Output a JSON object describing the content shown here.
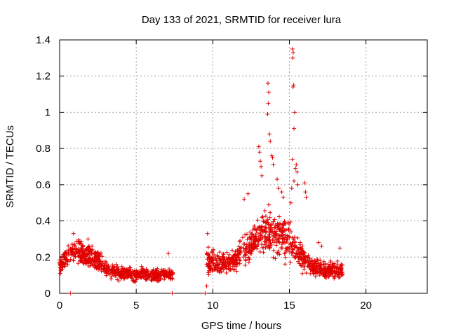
{
  "chart_data": {
    "type": "scatter",
    "title": "Day 133 of 2021, SRMTID for receiver lura",
    "xlabel": "GPS time / hours",
    "ylabel": "SRMTID / TECUs",
    "xlim": [
      0,
      24
    ],
    "ylim": [
      0,
      1.4
    ],
    "xticks": [
      0,
      5,
      10,
      15,
      20
    ],
    "yticks": [
      0,
      0.2,
      0.4,
      0.6,
      0.8,
      1,
      1.2,
      1.4
    ],
    "ytick_labels": [
      "0",
      "0.2",
      "0.4",
      "0.6",
      "0.8",
      "1",
      "1.2",
      "1.4"
    ],
    "grid": true,
    "marker": "+",
    "color": "#e00000",
    "series": [
      {
        "name": "SRMTID",
        "profile": [
          {
            "t": 0.0,
            "y": 0.15
          },
          {
            "t": 0.5,
            "y": 0.2
          },
          {
            "t": 1.0,
            "y": 0.23
          },
          {
            "t": 1.5,
            "y": 0.22
          },
          {
            "t": 2.0,
            "y": 0.2
          },
          {
            "t": 2.5,
            "y": 0.18
          },
          {
            "t": 3.0,
            "y": 0.14
          },
          {
            "t": 3.5,
            "y": 0.12
          },
          {
            "t": 4.0,
            "y": 0.11
          },
          {
            "t": 4.5,
            "y": 0.11
          },
          {
            "t": 5.0,
            "y": 0.1
          },
          {
            "t": 5.5,
            "y": 0.11
          },
          {
            "t": 6.0,
            "y": 0.1
          },
          {
            "t": 6.5,
            "y": 0.1
          },
          {
            "t": 7.0,
            "y": 0.11
          },
          {
            "t": 7.4,
            "y": 0.1
          }
        ],
        "profile2": [
          {
            "t": 9.6,
            "y": 0.18
          },
          {
            "t": 10.0,
            "y": 0.17
          },
          {
            "t": 10.5,
            "y": 0.16
          },
          {
            "t": 11.0,
            "y": 0.17
          },
          {
            "t": 11.5,
            "y": 0.18
          },
          {
            "t": 12.0,
            "y": 0.24
          },
          {
            "t": 12.5,
            "y": 0.26
          },
          {
            "t": 13.0,
            "y": 0.32
          },
          {
            "t": 13.5,
            "y": 0.36
          },
          {
            "t": 14.0,
            "y": 0.33
          },
          {
            "t": 14.5,
            "y": 0.3
          },
          {
            "t": 15.0,
            "y": 0.3
          },
          {
            "t": 15.5,
            "y": 0.24
          },
          {
            "t": 16.0,
            "y": 0.19
          },
          {
            "t": 16.5,
            "y": 0.15
          },
          {
            "t": 17.0,
            "y": 0.13
          },
          {
            "t": 17.5,
            "y": 0.12
          },
          {
            "t": 18.0,
            "y": 0.13
          },
          {
            "t": 18.5,
            "y": 0.12
          }
        ],
        "outliers": [
          {
            "x": 0.7,
            "y": 0.0
          },
          {
            "x": 7.35,
            "y": 0.0
          },
          {
            "x": 9.5,
            "y": 0.0
          },
          {
            "x": 9.6,
            "y": 0.04
          },
          {
            "x": 9.65,
            "y": 0.33
          },
          {
            "x": 12.05,
            "y": 0.52
          },
          {
            "x": 12.3,
            "y": 0.55
          },
          {
            "x": 13.0,
            "y": 0.81
          },
          {
            "x": 13.05,
            "y": 0.78
          },
          {
            "x": 13.1,
            "y": 0.73
          },
          {
            "x": 13.15,
            "y": 0.7
          },
          {
            "x": 13.2,
            "y": 0.65
          },
          {
            "x": 13.6,
            "y": 1.16
          },
          {
            "x": 13.65,
            "y": 1.11
          },
          {
            "x": 13.62,
            "y": 1.05
          },
          {
            "x": 13.58,
            "y": 0.99
          },
          {
            "x": 13.7,
            "y": 0.88
          },
          {
            "x": 13.75,
            "y": 0.84
          },
          {
            "x": 13.85,
            "y": 0.76
          },
          {
            "x": 13.9,
            "y": 0.75
          },
          {
            "x": 13.95,
            "y": 0.71
          },
          {
            "x": 14.2,
            "y": 0.63
          },
          {
            "x": 14.3,
            "y": 0.58
          },
          {
            "x": 14.5,
            "y": 0.56
          },
          {
            "x": 14.6,
            "y": 0.53
          },
          {
            "x": 15.2,
            "y": 1.35
          },
          {
            "x": 15.25,
            "y": 1.33
          },
          {
            "x": 15.22,
            "y": 1.3
          },
          {
            "x": 15.28,
            "y": 1.15
          },
          {
            "x": 15.24,
            "y": 1.14
          },
          {
            "x": 15.35,
            "y": 1.0
          },
          {
            "x": 15.3,
            "y": 0.91
          },
          {
            "x": 15.2,
            "y": 0.74
          },
          {
            "x": 15.45,
            "y": 0.71
          },
          {
            "x": 15.4,
            "y": 0.69
          },
          {
            "x": 15.5,
            "y": 0.67
          },
          {
            "x": 15.3,
            "y": 0.62
          },
          {
            "x": 15.55,
            "y": 0.6
          },
          {
            "x": 15.15,
            "y": 0.58
          },
          {
            "x": 16.0,
            "y": 0.61
          },
          {
            "x": 16.05,
            "y": 0.56
          },
          {
            "x": 16.1,
            "y": 0.53
          },
          {
            "x": 15.1,
            "y": 0.5
          },
          {
            "x": 7.1,
            "y": 0.22
          },
          {
            "x": 0.9,
            "y": 0.33
          },
          {
            "x": 1.85,
            "y": 0.3
          },
          {
            "x": 16.9,
            "y": 0.28
          },
          {
            "x": 17.1,
            "y": 0.26
          },
          {
            "x": 18.3,
            "y": 0.25
          }
        ]
      }
    ]
  }
}
